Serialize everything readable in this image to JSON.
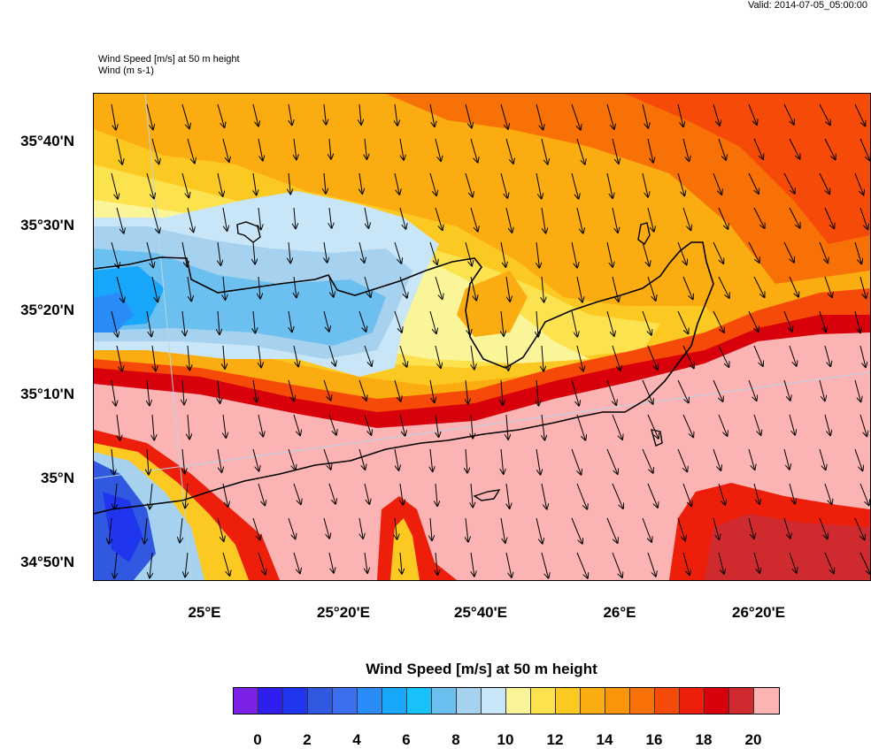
{
  "header": {
    "valid_text": "Valid: 2014-07-05_05:00:00",
    "title_line1": "Wind Speed [m/s] at 50 m height",
    "title_line2": "Wind   (m s-1)"
  },
  "map": {
    "lat_ticks": [
      "35°40'N",
      "35°30'N",
      "35°20'N",
      "35°10'N",
      "35°N",
      "34°50'N"
    ],
    "lon_ticks": [
      "25°E",
      "25°20'E",
      "25°40'E",
      "26°E",
      "26°20'E"
    ],
    "region": "Crete coastline"
  },
  "colorbar": {
    "title": "Wind Speed [m/s] at 50 m height",
    "labels": [
      "0",
      "2",
      "4",
      "6",
      "8",
      "10",
      "12",
      "14",
      "16",
      "18",
      "20"
    ],
    "colors": [
      "#7b22e6",
      "#2f1ef0",
      "#1f35ee",
      "#3158e0",
      "#3a6ff0",
      "#2a8cf8",
      "#19a7fb",
      "#16c2f9",
      "#6cc0f0",
      "#a6d2ef",
      "#c8e6f8",
      "#fbf59a",
      "#fde24f",
      "#fcc923",
      "#fbac10",
      "#fa9507",
      "#f87106",
      "#f64a08",
      "#ee1f0a",
      "#d8000a",
      "#cf2b2f",
      "#fbb3b4"
    ]
  }
}
